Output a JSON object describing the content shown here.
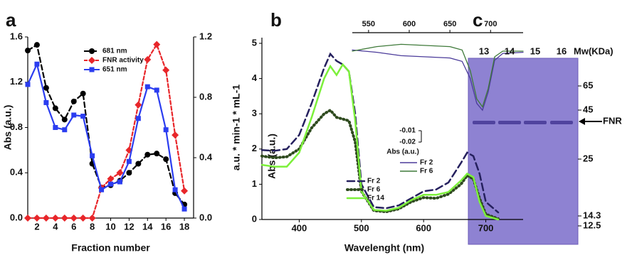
{
  "panel_labels": [
    "a",
    "b",
    "c"
  ],
  "chart_data": [
    {
      "type": "line",
      "x_label": "Fraction number",
      "y_label": "Abs (a.u.)",
      "y2_label": "a.u. * min-1 * mL-1",
      "x": [
        1,
        2,
        3,
        4,
        5,
        6,
        7,
        8,
        9,
        10,
        11,
        12,
        13,
        14,
        15,
        16,
        17,
        18
      ],
      "xlim": [
        1,
        19
      ],
      "xticks": [
        2,
        4,
        6,
        8,
        10,
        12,
        14,
        16,
        18
      ],
      "ylim": [
        0,
        1.6
      ],
      "yticks": [
        {
          "value": 0,
          "label": "0.0"
        },
        0.4,
        0.8,
        1.2,
        1.6
      ],
      "y2lim": [
        0,
        1.2
      ],
      "y2ticks": [
        {
          "value": 0,
          "label": "0.0"
        },
        0.4,
        0.8,
        1.2
      ],
      "series": [
        {
          "name": "681 nm",
          "color": "#000000",
          "marker": "circle",
          "dash": "7,4",
          "values": [
            1.48,
            1.53,
            1.15,
            0.97,
            0.87,
            1.03,
            1.1,
            0.48,
            0.27,
            0.29,
            0.33,
            0.4,
            0.48,
            0.56,
            0.57,
            0.52,
            0.22,
            0.12
          ]
        },
        {
          "name": "FNR activity",
          "color": "#e8262a",
          "marker": "diamond",
          "dash": "5,3",
          "axis": "y2",
          "values": [
            0,
            0,
            0,
            0,
            0,
            0,
            0,
            0,
            0.2,
            0.26,
            0.3,
            0.45,
            0.75,
            1.05,
            1.15,
            0.98,
            0.55,
            0.18
          ]
        },
        {
          "name": "651 nm",
          "color": "#2b3df0",
          "marker": "square",
          "dash": "",
          "values": [
            1.18,
            1.36,
            1.02,
            0.8,
            0.78,
            0.91,
            0.9,
            0.55,
            0.25,
            0.3,
            0.32,
            0.5,
            0.88,
            1.16,
            1.13,
            0.78,
            0.25,
            0.08
          ]
        }
      ]
    },
    {
      "type": "line",
      "x_label": "Wavelenght (nm)",
      "y_label": "Abs (a.u.)",
      "x": [
        340,
        360,
        380,
        400,
        420,
        440,
        450,
        460,
        470,
        480,
        490,
        500,
        520,
        540,
        560,
        580,
        600,
        620,
        640,
        660,
        670,
        680,
        690,
        700,
        720
      ],
      "xlim": [
        340,
        760
      ],
      "xticks": [
        400,
        500,
        600,
        700
      ],
      "ylim": [
        0,
        5
      ],
      "yticks": [
        0,
        1,
        2,
        3,
        4,
        5
      ],
      "series": [
        {
          "name": "Fr 2",
          "color": "#25205e",
          "dash": "10,5",
          "width": 2.5,
          "values": [
            1.97,
            1.95,
            2.0,
            2.4,
            3.3,
            4.3,
            4.7,
            4.5,
            4.4,
            4.2,
            3.0,
            1.0,
            0.35,
            0.32,
            0.4,
            0.6,
            0.8,
            0.85,
            1.05,
            1.6,
            1.9,
            1.8,
            1.3,
            0.5,
            0.2
          ]
        },
        {
          "name": "Fr 6",
          "color": "#2e4a1e",
          "dash": "1,4",
          "width": 4,
          "values": [
            1.8,
            1.75,
            1.78,
            2.0,
            2.6,
            3.0,
            3.1,
            2.9,
            2.85,
            2.8,
            2.2,
            0.8,
            0.25,
            0.22,
            0.3,
            0.5,
            0.62,
            0.6,
            0.72,
            1.0,
            1.25,
            1.15,
            0.6,
            0.15,
            0.02
          ]
        },
        {
          "name": "Fr 14",
          "color": "#7cf03a",
          "dash": "",
          "width": 2.5,
          "values": [
            1.55,
            1.5,
            1.5,
            1.9,
            2.9,
            4.0,
            4.35,
            4.1,
            4.4,
            4.2,
            2.8,
            0.8,
            0.27,
            0.25,
            0.33,
            0.55,
            0.7,
            0.7,
            0.78,
            1.1,
            1.3,
            1.2,
            0.5,
            0.1,
            0.0
          ]
        }
      ]
    },
    {
      "type": "line",
      "y_label": "Abs (a.u.)",
      "x": [
        530,
        560,
        590,
        620,
        650,
        665,
        675,
        683,
        690,
        697,
        705,
        715,
        740
      ],
      "xlim": [
        530,
        740
      ],
      "xticks": [
        550,
        600,
        650,
        700
      ],
      "ylim": [
        -0.02,
        0.07
      ],
      "yticks": [
        -0.01,
        -0.02
      ],
      "series": [
        {
          "name": "Fr 2",
          "color": "#4b3b9a",
          "dash": "",
          "width": 1.3,
          "values": [
            0.061,
            0.059,
            0.056,
            0.055,
            0.054,
            0.051,
            0.036,
            0.014,
            0.008,
            0.024,
            0.052,
            0.058,
            0.059
          ]
        },
        {
          "name": "Fr 6",
          "color": "#3f7a3a",
          "dash": "",
          "width": 1.3,
          "values": [
            0.06,
            0.064,
            0.066,
            0.065,
            0.064,
            0.061,
            0.043,
            0.018,
            0.011,
            0.027,
            0.055,
            0.06,
            0.06
          ]
        }
      ]
    }
  ],
  "gel": {
    "lanes": [
      "13",
      "14",
      "15",
      "16"
    ],
    "mw_label": "Mw(KDa)",
    "markers": [
      "65",
      "45",
      "25",
      "14.3",
      "12.5"
    ],
    "band_label": "FNR"
  }
}
